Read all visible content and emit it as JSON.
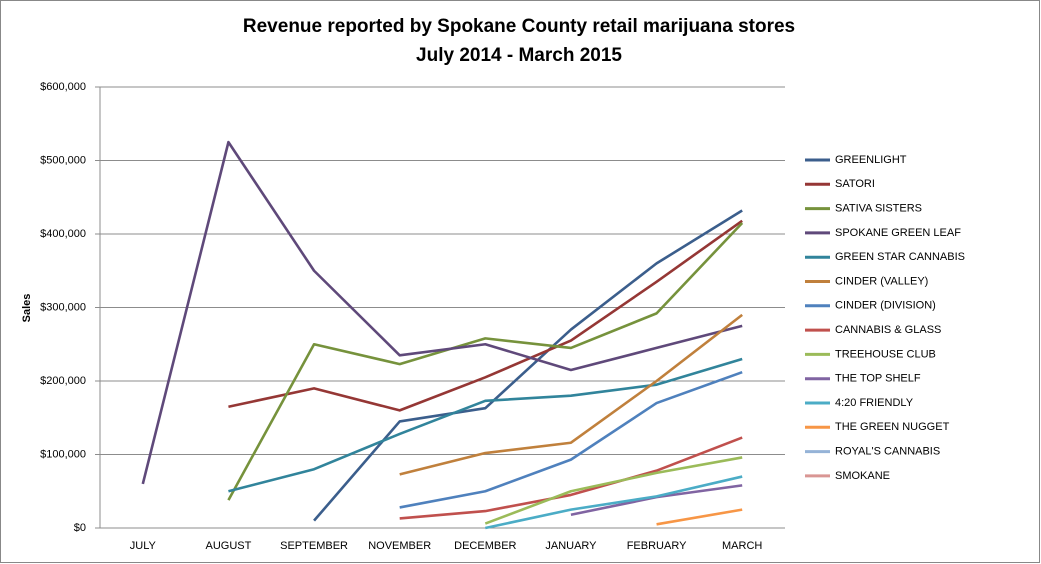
{
  "chart_data": {
    "type": "line",
    "title": "Revenue reported by Spokane County retail marijuana stores",
    "subtitle": "July 2014 - March 2015",
    "ylabel": "Sales",
    "categories": [
      "JULY",
      "AUGUST",
      "SEPTEMBER",
      "NOVEMBER",
      "DECEMBER",
      "JANUARY",
      "FEBRUARY",
      "MARCH"
    ],
    "ylim": [
      0,
      600000
    ],
    "yticks": [
      {
        "value": 0,
        "label": "$0"
      },
      {
        "value": 100000,
        "label": "$100,000"
      },
      {
        "value": 200000,
        "label": "$200,000"
      },
      {
        "value": 300000,
        "label": "$300,000"
      },
      {
        "value": 400000,
        "label": "$400,000"
      },
      {
        "value": 500000,
        "label": "$500,000"
      },
      {
        "value": 600000,
        "label": "$600,000"
      }
    ],
    "grid": true,
    "legend": "right",
    "series": [
      {
        "name": "GREENLIGHT",
        "color": "#3b5e8c",
        "values": [
          null,
          null,
          10000,
          145000,
          163000,
          270000,
          360000,
          432000
        ]
      },
      {
        "name": "SATORI",
        "color": "#953735",
        "values": [
          null,
          165000,
          190000,
          160000,
          205000,
          255000,
          335000,
          418000
        ]
      },
      {
        "name": "SATIVA SISTERS",
        "color": "#76923c",
        "values": [
          null,
          38000,
          250000,
          223000,
          258000,
          245000,
          292000,
          415000
        ]
      },
      {
        "name": "SPOKANE GREEN LEAF",
        "color": "#5f497a",
        "values": [
          60000,
          525000,
          350000,
          235000,
          250000,
          215000,
          245000,
          275000
        ]
      },
      {
        "name": "GREEN STAR CANNABIS",
        "color": "#31849b",
        "values": [
          null,
          50000,
          80000,
          128000,
          173000,
          180000,
          195000,
          230000
        ]
      },
      {
        "name": "CINDER (VALLEY)",
        "color": "#c0803c",
        "values": [
          null,
          null,
          null,
          73000,
          102000,
          116000,
          200000,
          290000
        ]
      },
      {
        "name": "CINDER (DIVISION)",
        "color": "#4f81bd",
        "values": [
          null,
          null,
          null,
          28000,
          50000,
          93000,
          170000,
          212000
        ]
      },
      {
        "name": "CANNABIS & GLASS",
        "color": "#c0504d",
        "values": [
          null,
          null,
          null,
          13000,
          23000,
          45000,
          78000,
          123000
        ]
      },
      {
        "name": "TREEHOUSE CLUB",
        "color": "#9bbb59",
        "values": [
          null,
          null,
          null,
          null,
          6000,
          50000,
          75000,
          96000
        ]
      },
      {
        "name": "THE TOP SHELF",
        "color": "#8064a2",
        "values": [
          null,
          null,
          null,
          null,
          null,
          18000,
          42000,
          58000
        ]
      },
      {
        "name": "4:20 FRIENDLY",
        "color": "#4bacc6",
        "values": [
          null,
          null,
          null,
          null,
          0,
          25000,
          43000,
          70000
        ]
      },
      {
        "name": "THE GREEN  NUGGET",
        "color": "#f79646",
        "values": [
          null,
          null,
          null,
          null,
          null,
          null,
          5000,
          25000
        ]
      },
      {
        "name": "ROYAL'S CANNABIS",
        "color": "#95b3d7",
        "values": [
          null,
          null,
          null,
          null,
          null,
          null,
          null,
          null
        ]
      },
      {
        "name": "SMOKANE",
        "color": "#d99694",
        "values": [
          null,
          null,
          null,
          null,
          null,
          null,
          null,
          null
        ]
      }
    ]
  }
}
